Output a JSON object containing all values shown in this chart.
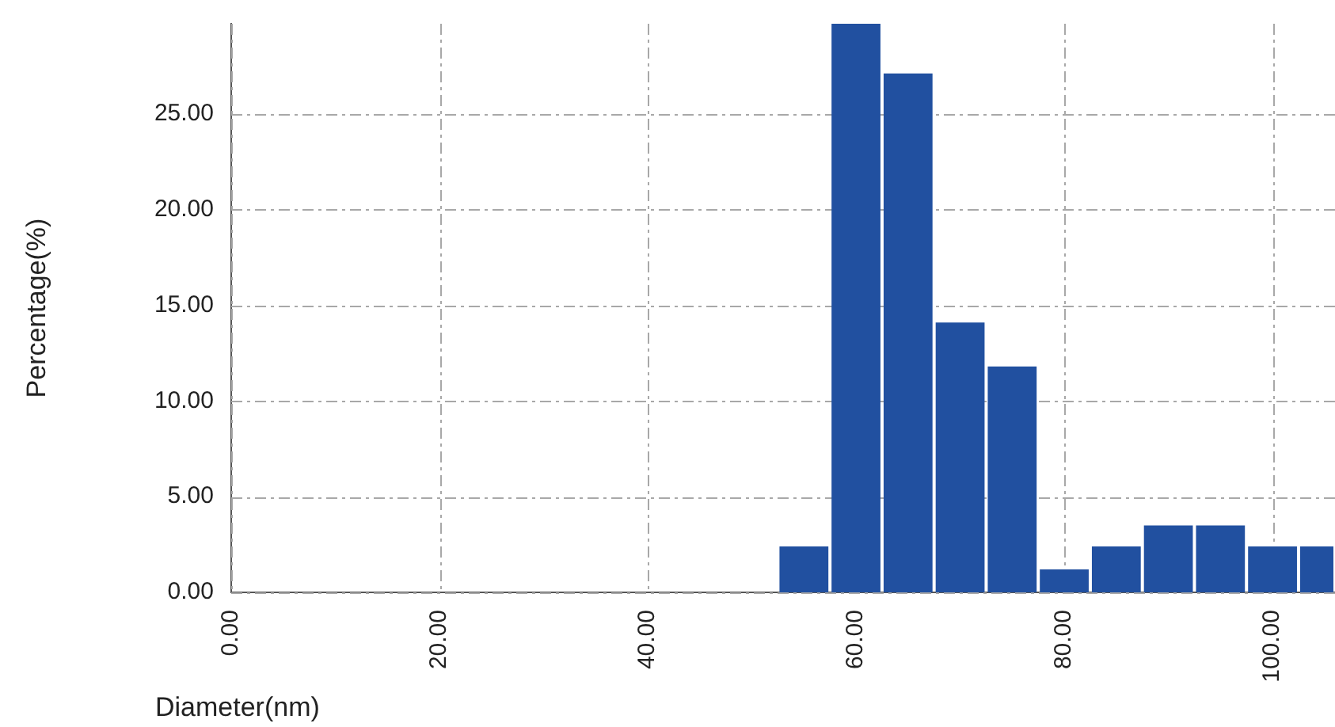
{
  "chart_data": {
    "type": "histogram",
    "xlabel": "Diameter(nm)",
    "ylabel": "Percentage(%)",
    "bins": [
      52.5,
      57.5,
      62.5,
      67.5,
      72.5,
      77.5,
      82.5,
      87.5,
      92.5,
      97.5,
      102.5,
      106
    ],
    "values": [
      2.4,
      29.7,
      27.1,
      14.1,
      11.8,
      1.2,
      2.4,
      3.5,
      3.5,
      2.4,
      2.4
    ],
    "color": "#2150a0",
    "xlim": [
      0,
      106
    ],
    "xticks": [
      {
        "value": 0,
        "label": "0.00"
      },
      {
        "value": 20,
        "label": "20.00"
      },
      {
        "value": 40,
        "label": "40.00"
      },
      {
        "value": 60,
        "label": "60.00"
      },
      {
        "value": 80,
        "label": "80.00"
      },
      {
        "value": 100,
        "label": "100.00"
      }
    ],
    "ylim": [
      0,
      29.7
    ],
    "yticks": [
      {
        "value": 0,
        "label": "0.00"
      },
      {
        "value": 5,
        "label": "5.00"
      },
      {
        "value": 10,
        "label": "10.00"
      },
      {
        "value": 15,
        "label": "15.00"
      },
      {
        "value": 20,
        "label": "20.00"
      },
      {
        "value": 25,
        "label": "25.00"
      }
    ],
    "grid": true,
    "legend": false
  }
}
